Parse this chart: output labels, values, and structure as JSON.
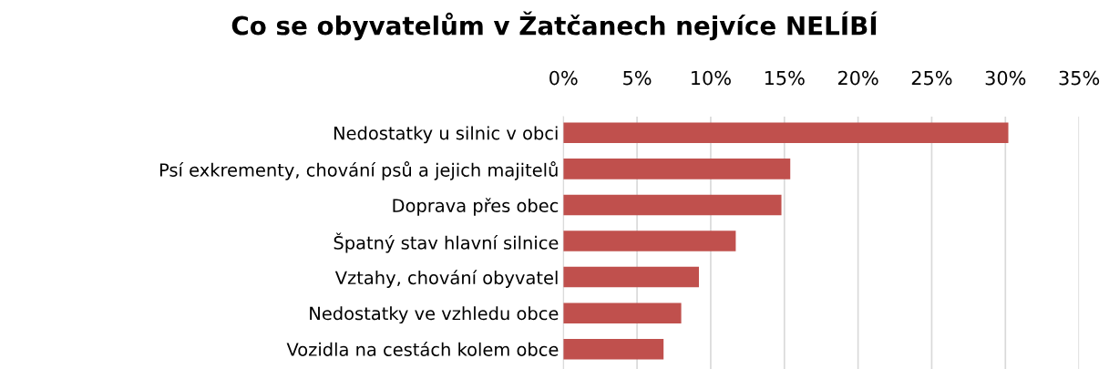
{
  "chart_data": {
    "type": "bar",
    "orientation": "horizontal",
    "title": "Co se obyvatelům v Žatčanech nejvíce NELÍBÍ",
    "categories": [
      "Nedostatky u silnic v obci",
      "Psí exkrementy, chování psů a jejich majitelů",
      "Doprava přes obec",
      "Špatný stav hlavní silnice",
      "Vztahy, chování obyvatel",
      "Nedostatky ve vzhledu obce",
      "Vozidla na cestách kolem obce"
    ],
    "values": [
      30.2,
      15.4,
      14.8,
      11.7,
      9.2,
      8.0,
      6.8
    ],
    "color": "#c0504d",
    "xlim": [
      0,
      35
    ],
    "xticks": [
      {
        "value": 0,
        "label": "0%"
      },
      {
        "value": 5,
        "label": "5%"
      },
      {
        "value": 10,
        "label": "10%"
      },
      {
        "value": 15,
        "label": "15%"
      },
      {
        "value": 20,
        "label": "20%"
      },
      {
        "value": 25,
        "label": "25%"
      },
      {
        "value": 30,
        "label": "30%"
      },
      {
        "value": 35,
        "label": "35%"
      }
    ],
    "grid": "x"
  }
}
